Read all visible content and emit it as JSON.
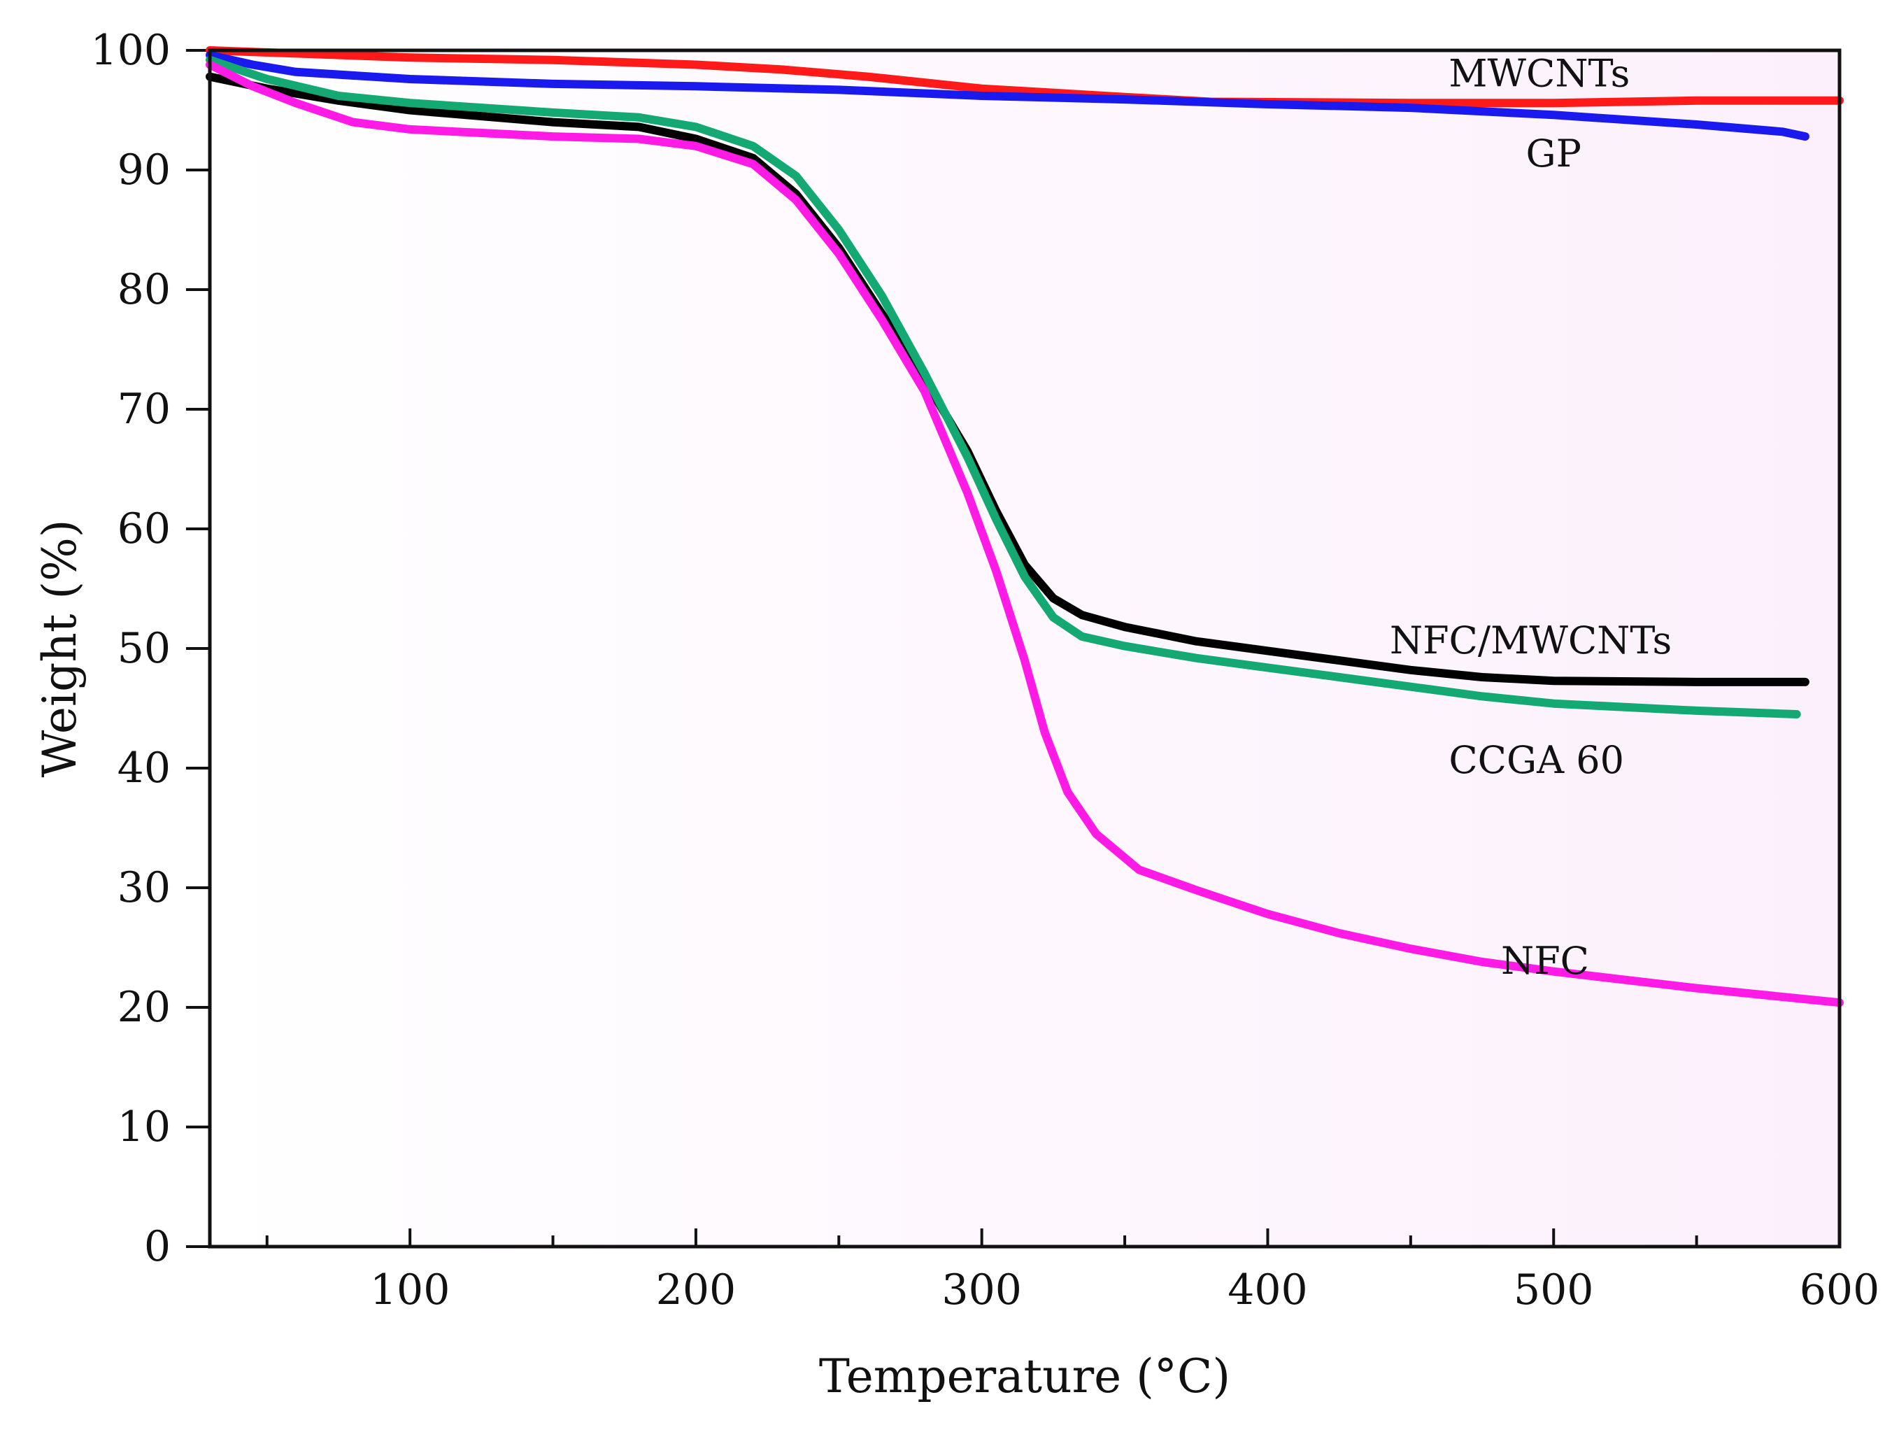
{
  "chart_data": {
    "type": "line",
    "title": "",
    "xlabel": "Temperature (°C)",
    "ylabel": "Weight  (%)",
    "xlim": [
      30,
      600
    ],
    "ylim": [
      0,
      100
    ],
    "x_ticks": [
      100,
      200,
      300,
      400,
      500,
      600
    ],
    "x_tick_labels": [
      "100",
      "200",
      "300",
      "400",
      "500",
      "600"
    ],
    "y_ticks": [
      0,
      10,
      20,
      30,
      40,
      50,
      60,
      70,
      80,
      90,
      100
    ],
    "y_tick_labels": [
      "0",
      "10",
      "20",
      "30",
      "40",
      "50",
      "60",
      "70",
      "80",
      "90",
      "100"
    ],
    "grid": false,
    "series": [
      {
        "name": "MWCNTs",
        "color": "#ff1a1a",
        "label_x": 495,
        "label_y": 97,
        "points": [
          [
            30,
            100
          ],
          [
            100,
            99.4
          ],
          [
            150,
            99.2
          ],
          [
            200,
            98.8
          ],
          [
            230,
            98.4
          ],
          [
            260,
            97.8
          ],
          [
            300,
            96.8
          ],
          [
            350,
            96.1
          ],
          [
            380,
            95.7
          ],
          [
            450,
            95.6
          ],
          [
            500,
            95.6
          ],
          [
            550,
            95.8
          ],
          [
            600,
            95.8
          ]
        ]
      },
      {
        "name": "GP",
        "color": "#1a1aee",
        "label_x": 500,
        "label_y": 90.3,
        "points": [
          [
            30,
            99.6
          ],
          [
            45,
            98.8
          ],
          [
            60,
            98.2
          ],
          [
            100,
            97.6
          ],
          [
            150,
            97.2
          ],
          [
            200,
            97
          ],
          [
            250,
            96.7
          ],
          [
            300,
            96.2
          ],
          [
            350,
            95.9
          ],
          [
            400,
            95.5
          ],
          [
            450,
            95.2
          ],
          [
            500,
            94.6
          ],
          [
            550,
            93.8
          ],
          [
            580,
            93.2
          ],
          [
            588,
            92.8
          ]
        ]
      },
      {
        "name": "NFC/MWCNTs",
        "color": "#000000",
        "label_x": 492,
        "label_y": 49.6,
        "points": [
          [
            30,
            97.8
          ],
          [
            50,
            96.8
          ],
          [
            75,
            95.8
          ],
          [
            100,
            95
          ],
          [
            150,
            94
          ],
          [
            180,
            93.6
          ],
          [
            200,
            92.6
          ],
          [
            220,
            91
          ],
          [
            235,
            88
          ],
          [
            250,
            83.5
          ],
          [
            265,
            78
          ],
          [
            280,
            72.5
          ],
          [
            295,
            66.5
          ],
          [
            305,
            61.5
          ],
          [
            315,
            57
          ],
          [
            325,
            54.2
          ],
          [
            335,
            52.8
          ],
          [
            350,
            51.8
          ],
          [
            375,
            50.6
          ],
          [
            400,
            49.8
          ],
          [
            425,
            49
          ],
          [
            450,
            48.2
          ],
          [
            475,
            47.6
          ],
          [
            500,
            47.3
          ],
          [
            550,
            47.2
          ],
          [
            588,
            47.2
          ]
        ]
      },
      {
        "name": "CCGA 60",
        "color": "#14a873",
        "label_x": 494,
        "label_y": 39.6,
        "points": [
          [
            30,
            99.2
          ],
          [
            50,
            97.6
          ],
          [
            75,
            96.2
          ],
          [
            100,
            95.6
          ],
          [
            150,
            94.8
          ],
          [
            180,
            94.4
          ],
          [
            200,
            93.6
          ],
          [
            220,
            92
          ],
          [
            235,
            89.5
          ],
          [
            250,
            85
          ],
          [
            265,
            79.5
          ],
          [
            280,
            73
          ],
          [
            295,
            66
          ],
          [
            305,
            60.8
          ],
          [
            315,
            56
          ],
          [
            325,
            52.6
          ],
          [
            335,
            51
          ],
          [
            350,
            50.2
          ],
          [
            375,
            49.2
          ],
          [
            400,
            48.4
          ],
          [
            425,
            47.6
          ],
          [
            450,
            46.8
          ],
          [
            475,
            46
          ],
          [
            500,
            45.4
          ],
          [
            550,
            44.8
          ],
          [
            585,
            44.5
          ]
        ]
      },
      {
        "name": "NFC",
        "color": "#ff1ae6",
        "label_x": 497,
        "label_y": 22.8,
        "points": [
          [
            30,
            98.8
          ],
          [
            45,
            97
          ],
          [
            60,
            95.6
          ],
          [
            80,
            94
          ],
          [
            100,
            93.4
          ],
          [
            150,
            92.8
          ],
          [
            180,
            92.6
          ],
          [
            200,
            92
          ],
          [
            220,
            90.5
          ],
          [
            235,
            87.5
          ],
          [
            250,
            83
          ],
          [
            265,
            77.5
          ],
          [
            280,
            71.5
          ],
          [
            295,
            63
          ],
          [
            305,
            56.5
          ],
          [
            315,
            49
          ],
          [
            322,
            43
          ],
          [
            330,
            38
          ],
          [
            340,
            34.5
          ],
          [
            355,
            31.5
          ],
          [
            375,
            29.8
          ],
          [
            400,
            27.8
          ],
          [
            425,
            26.2
          ],
          [
            450,
            24.9
          ],
          [
            475,
            23.8
          ],
          [
            500,
            23
          ],
          [
            525,
            22.3
          ],
          [
            550,
            21.6
          ],
          [
            575,
            21
          ],
          [
            600,
            20.4
          ]
        ]
      }
    ]
  }
}
